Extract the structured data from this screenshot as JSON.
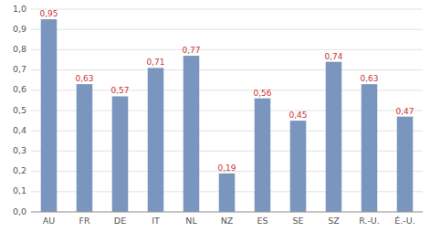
{
  "chart_data": {
    "type": "bar",
    "categories": [
      "AU",
      "FR",
      "DE",
      "IT",
      "NL",
      "NZ",
      "ES",
      "SE",
      "SZ",
      "R.-U.",
      "É.-U."
    ],
    "values": [
      0.95,
      0.63,
      0.57,
      0.71,
      0.77,
      0.19,
      0.56,
      0.45,
      0.74,
      0.63,
      0.47
    ],
    "value_labels": [
      "0,95",
      "0,63",
      "0,57",
      "0,71",
      "0,77",
      "0,19",
      "0,56",
      "0,45",
      "0,74",
      "0,63",
      "0,47"
    ],
    "data_labels": true,
    "color": "#7b96be",
    "ylim": [
      0.0,
      1.0
    ],
    "yticks": [
      {
        "value": 0.0,
        "label": "0,0"
      },
      {
        "value": 0.1,
        "label": "0,1"
      },
      {
        "value": 0.2,
        "label": "0,2"
      },
      {
        "value": 0.3,
        "label": "0,3"
      },
      {
        "value": 0.4,
        "label": "0,4"
      },
      {
        "value": 0.5,
        "label": "0,5"
      },
      {
        "value": 0.6,
        "label": "0,6"
      },
      {
        "value": 0.7,
        "label": "0,7"
      },
      {
        "value": 0.8,
        "label": "0,8"
      },
      {
        "value": 0.9,
        "label": "0,9"
      },
      {
        "value": 1.0,
        "label": "1,0"
      }
    ],
    "grid": true
  }
}
